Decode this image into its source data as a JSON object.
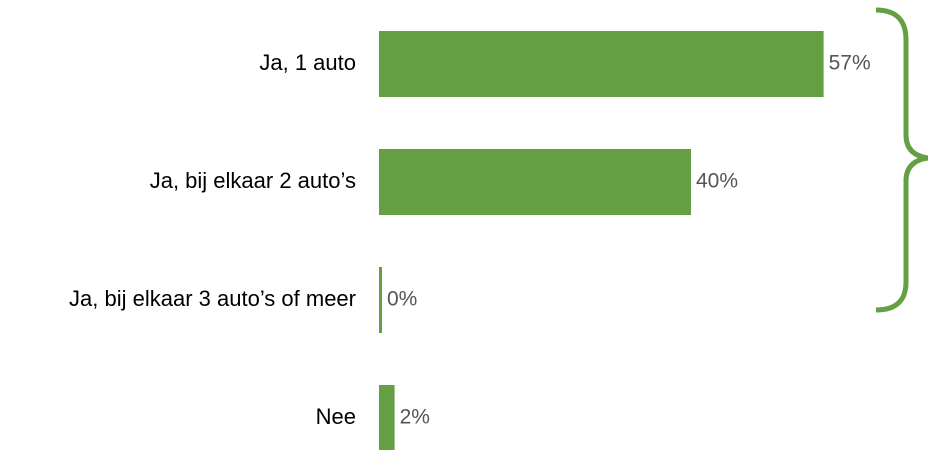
{
  "chart_data": {
    "type": "bar",
    "orientation": "horizontal",
    "categories": [
      "Ja, 1 auto",
      "Ja, bij elkaar 2 auto’s",
      "Ja, bij elkaar 3 auto’s of meer",
      "Nee"
    ],
    "values": [
      57,
      40,
      0,
      2
    ],
    "value_labels": [
      "57%",
      "40%",
      "0%",
      "2%"
    ],
    "color": "#64a043",
    "xlim": [
      0,
      100
    ]
  }
}
